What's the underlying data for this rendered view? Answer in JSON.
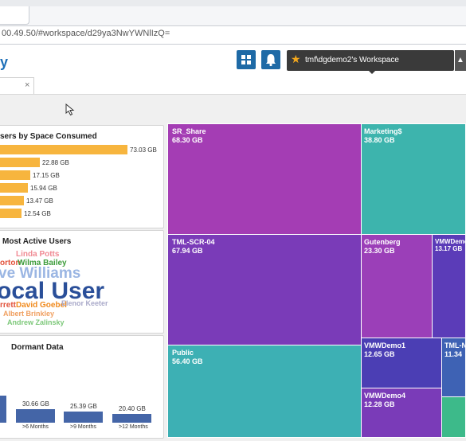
{
  "browser": {
    "url": "00.49.50/#workspace/d29ya3NwYWNlIzQ="
  },
  "header": {
    "logo_text": "y",
    "workspace_label": "tmf\\dgdemo2's Workspace",
    "grid_icon": "grid-icon",
    "bell_icon": "bell-icon",
    "star_icon": "star-icon"
  },
  "tab": {
    "close_glyph": "×"
  },
  "top_users": {
    "title": "sers by Space Consumed",
    "bars": [
      {
        "value": 73.03,
        "label": "73.03 GB"
      },
      {
        "value": 22.88,
        "label": "22.88 GB"
      },
      {
        "value": 17.15,
        "label": "17.15 GB"
      },
      {
        "value": 15.94,
        "label": "15.94 GB"
      },
      {
        "value": 13.47,
        "label": "13.47 GB"
      },
      {
        "value": 12.54,
        "label": "12.54 GB"
      }
    ],
    "color": "#f7b53e"
  },
  "active_users": {
    "title": "Most Active Users",
    "words": [
      {
        "text": "Linda Potts",
        "color": "#f08a93"
      },
      {
        "text": "orton",
        "color": "#e2513a"
      },
      {
        "text": "Wilma Bailey",
        "color": "#3d9c3b"
      },
      {
        "text": "ve Williams",
        "color": "#9bb6e3"
      },
      {
        "text": "ocal User",
        "color": "#2a4f99"
      },
      {
        "text": "rrett",
        "color": "#e2513a"
      },
      {
        "text": "David Goebel",
        "color": "#f08a1d"
      },
      {
        "text": "Elenor Keeter",
        "color": "#a9a9c9"
      },
      {
        "text": "Albert Brinkley",
        "color": "#f0a060"
      },
      {
        "text": "Andrew Zalinsky",
        "color": "#7dc87a"
      }
    ]
  },
  "dormant": {
    "title": "Dormant Data",
    "bars": [
      {
        "category": "",
        "value": 60,
        "label": ""
      },
      {
        "category": ">6 Months",
        "value": 30.66,
        "label": "30.66 GB"
      },
      {
        "category": ">9 Months",
        "value": 25.39,
        "label": "25.39 GB"
      },
      {
        "category": ">12 Months",
        "value": 20.4,
        "label": "20.40 GB"
      }
    ],
    "color": "#4465a7"
  },
  "treemap": {
    "tiles": [
      {
        "name": "SR_Share",
        "size": "68.30 GB",
        "color": "#a43db4"
      },
      {
        "name": "Marketing$",
        "size": "38.80 GB",
        "color": "#3db4ad"
      },
      {
        "name": "TML-SCR-04",
        "size": "67.94 GB",
        "color": "#7a3bb8"
      },
      {
        "name": "Gutenberg",
        "size": "23.30 GB",
        "color": "#9b3fb8"
      },
      {
        "name": "VMWDemo",
        "size": "13.17 GB",
        "color": "#5b3cb8"
      },
      {
        "name": "Public",
        "size": "56.40 GB",
        "color": "#3db0b4"
      },
      {
        "name": "VMWDemo1",
        "size": "12.65 GB",
        "color": "#4b3eb4"
      },
      {
        "name": "TML-N",
        "size": "11.34",
        "color": "#3e62b4"
      },
      {
        "name": "VMWDemo4",
        "size": "12.28 GB",
        "color": "#7a3bb8"
      },
      {
        "name": "",
        "size": "",
        "color": "#3dba8a"
      }
    ]
  }
}
